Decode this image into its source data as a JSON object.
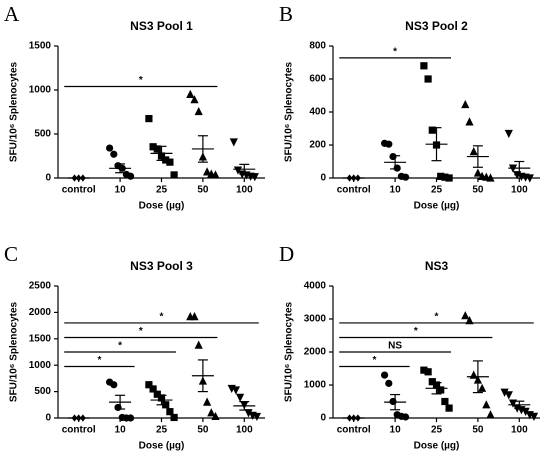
{
  "chart_data": [
    {
      "type": "scatter",
      "panel": "A",
      "title": "NS3 Pool 1",
      "xlabel": "Dose (µg)",
      "ylabel": "SFU/10⁶ Splenocytes",
      "categories": [
        "control",
        "10",
        "25",
        "50",
        "100"
      ],
      "markers": [
        "diamond",
        "circle",
        "square",
        "triangle-up",
        "triangle-down"
      ],
      "color": "#000000",
      "points": [
        [
          0,
          0,
          0
        ],
        [
          340,
          270,
          140,
          110,
          40,
          20
        ],
        [
          675,
          355,
          330,
          250,
          205,
          180,
          35
        ],
        [
          950,
          890,
          755,
          240,
          70,
          45,
          35
        ],
        [
          410,
          90,
          45,
          35,
          20,
          15
        ]
      ],
      "means": [
        0,
        110,
        280,
        330,
        100
      ],
      "errors": [
        0,
        50,
        80,
        150,
        55
      ],
      "ylim": [
        0,
        1500
      ],
      "yticks": [
        0,
        500,
        1000,
        1500
      ],
      "annotations": [
        {
          "between": [
            "control",
            "50"
          ],
          "label": "*"
        }
      ]
    },
    {
      "type": "scatter",
      "panel": "B",
      "title": "NS3 Pool 2",
      "xlabel": "Dose (µg)",
      "ylabel": "SFU/10⁶ Splenocytes",
      "categories": [
        "control",
        "10",
        "25",
        "50",
        "100"
      ],
      "markers": [
        "diamond",
        "circle",
        "square",
        "triangle-up",
        "triangle-down"
      ],
      "color": "#000000",
      "points": [
        [
          0,
          0,
          0
        ],
        [
          210,
          205,
          130,
          60,
          10,
          5
        ],
        [
          680,
          600,
          290,
          200,
          10,
          5,
          0
        ],
        [
          445,
          340,
          160,
          30,
          10,
          5,
          0
        ],
        [
          270,
          60,
          20,
          10,
          5,
          0
        ]
      ],
      "means": [
        0,
        95,
        205,
        130,
        60
      ],
      "errors": [
        0,
        40,
        100,
        65,
        40
      ],
      "ylim": [
        0,
        800
      ],
      "yticks": [
        0,
        200,
        400,
        600,
        800
      ],
      "annotations": [
        {
          "between": [
            "control",
            "25"
          ],
          "label": "*"
        }
      ]
    },
    {
      "type": "scatter",
      "panel": "C",
      "title": "NS3 Pool 3",
      "xlabel": "Dose (µg)",
      "ylabel": "SFU/10⁶ Splenocytes",
      "categories": [
        "control",
        "10",
        "25",
        "50",
        "100"
      ],
      "markers": [
        "diamond",
        "circle",
        "square",
        "triangle-up",
        "triangle-down"
      ],
      "color": "#000000",
      "points": [
        [
          0,
          0,
          0
        ],
        [
          680,
          630,
          200,
          10,
          0,
          0
        ],
        [
          630,
          550,
          450,
          380,
          250,
          120,
          10
        ],
        [
          1920,
          1920,
          1380,
          700,
          300,
          100,
          30
        ],
        [
          560,
          530,
          390,
          250,
          100,
          50,
          30
        ]
      ],
      "means": [
        0,
        300,
        340,
        800,
        230
      ],
      "errors": [
        0,
        130,
        90,
        300,
        80
      ],
      "ylim": [
        0,
        2500
      ],
      "yticks": [
        0,
        500,
        1000,
        1500,
        2000,
        2500
      ],
      "annotations": [
        {
          "between": [
            "control",
            "10"
          ],
          "label": "*"
        },
        {
          "between": [
            "control",
            "25"
          ],
          "label": "*"
        },
        {
          "between": [
            "control",
            "50"
          ],
          "label": "*"
        },
        {
          "between": [
            "control",
            "100"
          ],
          "label": "*"
        }
      ]
    },
    {
      "type": "scatter",
      "panel": "D",
      "title": "NS3",
      "xlabel": "Dose (µg)",
      "ylabel": "SFU/10⁶ Splenocytes",
      "categories": [
        "control",
        "10",
        "25",
        "50",
        "100"
      ],
      "markers": [
        "diamond",
        "circle",
        "square",
        "triangle-up",
        "triangle-down"
      ],
      "color": "#000000",
      "points": [
        [
          0,
          0,
          0
        ],
        [
          1300,
          1050,
          500,
          100,
          50,
          30
        ],
        [
          1450,
          1400,
          1100,
          1000,
          850,
          500,
          300
        ],
        [
          3100,
          2950,
          1300,
          1150,
          900,
          400,
          100
        ],
        [
          780,
          700,
          450,
          300,
          250,
          200,
          100,
          50
        ]
      ],
      "means": [
        0,
        480,
        900,
        1250,
        400
      ],
      "errors": [
        0,
        230,
        170,
        480,
        110
      ],
      "ylim": [
        0,
        4000
      ],
      "yticks": [
        0,
        1000,
        2000,
        3000,
        4000
      ],
      "annotations": [
        {
          "between": [
            "control",
            "10"
          ],
          "label": "*"
        },
        {
          "between": [
            "control",
            "25"
          ],
          "label": "NS"
        },
        {
          "between": [
            "control",
            "50"
          ],
          "label": "*"
        },
        {
          "between": [
            "control",
            "100"
          ],
          "label": "*"
        }
      ]
    }
  ]
}
